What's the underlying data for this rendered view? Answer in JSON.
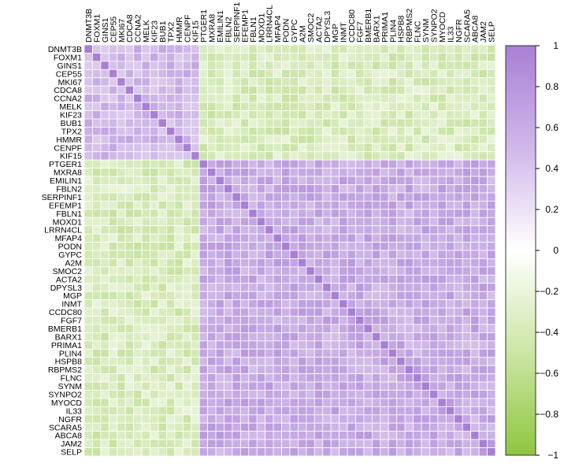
{
  "chart_data": {
    "type": "heatmap",
    "title": "",
    "xlabel": "",
    "ylabel": "",
    "genes": [
      "DNMT3B",
      "FOXM1",
      "GINS1",
      "CEP55",
      "MKI67",
      "CDCA8",
      "CCNA2",
      "MELK",
      "KIF23",
      "BUB1",
      "TPX2",
      "HMMR",
      "CENPF",
      "KIF15",
      "PTGER1",
      "MXRA8",
      "EMILIN1",
      "FBLN2",
      "SERPINF1",
      "EFEMP1",
      "FBLN1",
      "MOXD1",
      "LRRN4CL",
      "MFAP4",
      "PODN",
      "GYPC",
      "A2M",
      "SMOC2",
      "ACTA2",
      "DPYSL3",
      "MGP",
      "INMT",
      "CCDC80",
      "FGF7",
      "BMERB1",
      "BARX1",
      "PRIMA1",
      "PLIN4",
      "HSPB8",
      "RBPMS2",
      "FLNC",
      "SYNM",
      "SYNPO2",
      "MYOCD",
      "IL33",
      "NGFR",
      "SCARA5",
      "ABCA8",
      "JAM2",
      "SELP"
    ],
    "clusters": [
      {
        "genes": [
          "DNMT3B",
          "FOXM1",
          "GINS1",
          "CEP55",
          "MKI67",
          "CDCA8",
          "CCNA2",
          "MELK",
          "KIF23",
          "BUB1",
          "TPX2",
          "HMMR",
          "CENPF",
          "KIF15"
        ],
        "within_correlation_approx": 0.55
      },
      {
        "genes": [
          "PTGER1",
          "MXRA8",
          "EMILIN1",
          "FBLN2",
          "SERPINF1",
          "EFEMP1",
          "FBLN1",
          "MOXD1",
          "LRRN4CL",
          "MFAP4",
          "PODN",
          "GYPC",
          "A2M",
          "SMOC2",
          "ACTA2",
          "DPYSL3",
          "MGP",
          "INMT",
          "CCDC80",
          "FGF7",
          "BMERB1",
          "BARX1",
          "PRIMA1",
          "PLIN4",
          "HSPB8",
          "RBPMS2",
          "FLNC",
          "SYNM",
          "SYNPO2",
          "MYOCD",
          "IL33",
          "NGFR",
          "SCARA5",
          "ABCA8",
          "JAM2",
          "SELP"
        ],
        "within_correlation_approx": 0.65
      }
    ],
    "between_cluster_correlation_approx": -0.35,
    "diagonal": 1,
    "colorbar": {
      "min": -1,
      "max": 1,
      "ticks": [
        "1",
        "0.8",
        "0.6",
        "0.4",
        "0.2",
        "0",
        "−0.2",
        "−0.4",
        "−0.6",
        "−0.8",
        "−1"
      ],
      "colors": {
        "high": "#a97fd6",
        "mid": "#ffffff",
        "low": "#8ec63f"
      }
    }
  }
}
